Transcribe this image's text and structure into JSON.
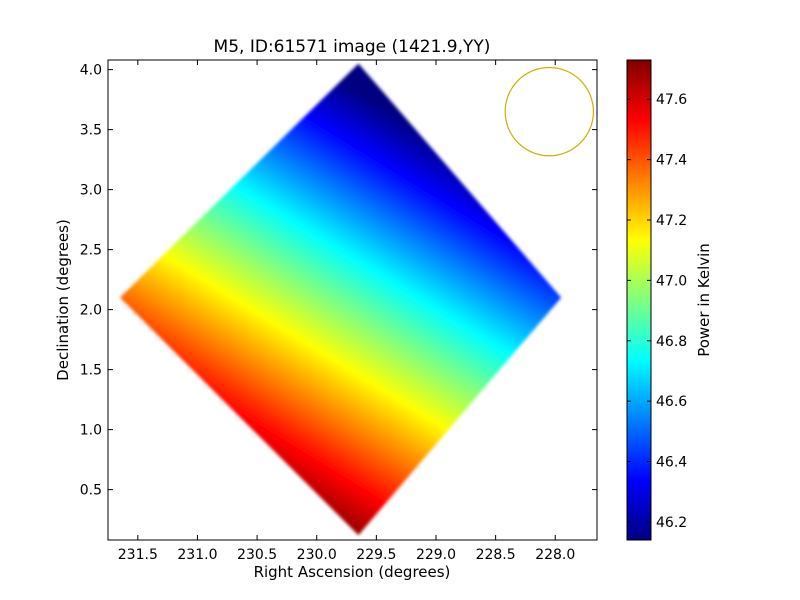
{
  "chart_data": {
    "type": "heatmap",
    "title": "M5, ID:61571 image (1421.9,YY)",
    "xlabel": "Right Ascension (degrees)",
    "ylabel": "Declination (degrees)",
    "xlim": [
      231.75,
      227.65
    ],
    "ylim": [
      0.08,
      4.08
    ],
    "x_inverted": true,
    "xticks": [
      231.5,
      231.0,
      230.5,
      230.0,
      229.5,
      229.0,
      228.5,
      228.0
    ],
    "xtick_labels": [
      "231.5",
      "231.0",
      "230.5",
      "230.0",
      "229.5",
      "229.0",
      "228.5",
      "228.0"
    ],
    "yticks": [
      0.5,
      1.0,
      1.5,
      2.0,
      2.5,
      3.0,
      3.5,
      4.0
    ],
    "ytick_labels": [
      "0.5",
      "1.0",
      "1.5",
      "2.0",
      "2.5",
      "3.0",
      "3.5",
      "4.0"
    ],
    "colormap": "jet",
    "colorbar": {
      "label": "Power in Kelvin",
      "min": 46.14,
      "max": 47.73,
      "ticks": [
        46.2,
        46.4,
        46.6,
        46.8,
        47.0,
        47.2,
        47.4,
        47.6
      ],
      "tick_labels": [
        "46.2",
        "46.4",
        "46.6",
        "46.8",
        "47.0",
        "47.2",
        "47.4",
        "47.6"
      ]
    },
    "map_region": {
      "shape": "diamond",
      "vertices_ra_dec": [
        [
          229.65,
          4.05
        ],
        [
          227.95,
          2.1
        ],
        [
          229.65,
          0.12
        ],
        [
          231.65,
          2.1
        ]
      ]
    },
    "gradient": {
      "direction": "increasing from upper-right toward lower-left",
      "max_corner_ra_dec": [
        230.0,
        0.25
      ],
      "min_corner_ra_dec": [
        228.3,
        3.0
      ],
      "value_max": 47.73,
      "value_min": 46.14
    },
    "beam_circle": {
      "center_ra_dec": [
        228.05,
        3.65
      ],
      "radius_deg": 0.37,
      "color": "#c8b400"
    }
  }
}
